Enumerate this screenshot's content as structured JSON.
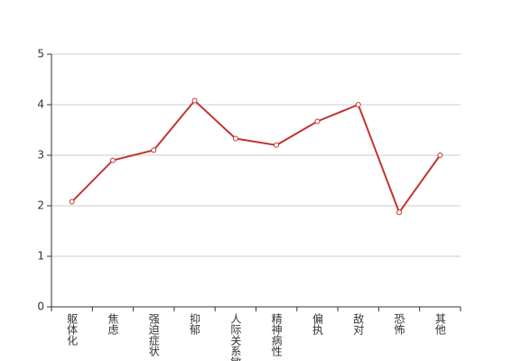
{
  "chart_data": {
    "type": "line",
    "categories": [
      "躯体化",
      "焦虑",
      "强迫症状",
      "抑郁",
      "人际关系敏感",
      "精神病性",
      "偏执",
      "敌对",
      "恐怖",
      "其他"
    ],
    "series": [
      {
        "color": "#c23531",
        "values": [
          2.08,
          2.9,
          3.1,
          4.08,
          3.33,
          3.2,
          3.67,
          4.0,
          1.87,
          3.0
        ]
      }
    ],
    "ylim": [
      0,
      5
    ],
    "yticks": [
      0,
      1,
      2,
      3,
      4,
      5
    ],
    "grid": true
  }
}
